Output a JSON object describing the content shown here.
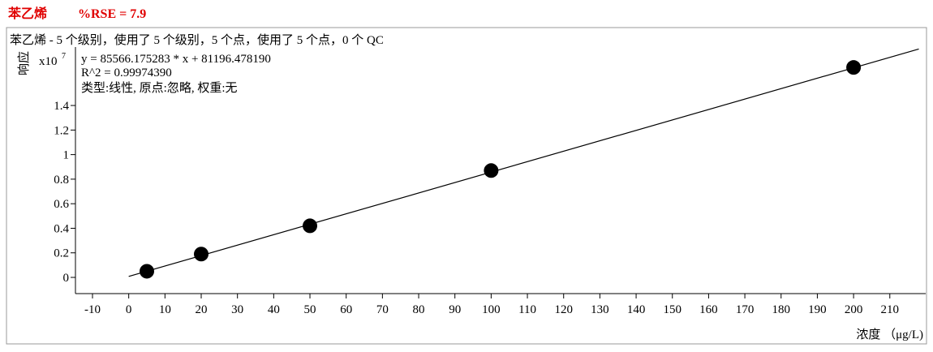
{
  "chart_data": {
    "type": "scatter",
    "title": "苯乙烯",
    "title_note": "%RSE = 7.9",
    "subtitle": "苯乙烯 - 5 个级别，使用了 5 个级别，5 个点，使用了 5 个点，0 个 QC",
    "annotations": [
      "y = 85566.175283 * x   + 81196.478190",
      "R^2 = 0.99974390",
      "类型:线性, 原点:忽略, 权重:无"
    ],
    "y_label": "响应",
    "y_multiplier": {
      "base": "x10",
      "exponent": "7"
    },
    "x_label": "浓度 （μg/L)",
    "x": [
      5,
      20,
      50,
      100,
      200
    ],
    "values": [
      0.05,
      0.19,
      0.42,
      0.87,
      1.71
    ],
    "color": "#000000",
    "fit_line": {
      "x": [
        0,
        218
      ],
      "values": [
        0.008,
        1.86
      ],
      "color": "#000000"
    },
    "xlim": [
      -14.7,
      219.9
    ],
    "xticks": [
      -10,
      0,
      10,
      20,
      30,
      40,
      50,
      60,
      70,
      80,
      90,
      100,
      110,
      120,
      130,
      140,
      150,
      160,
      170,
      180,
      190,
      200,
      210
    ],
    "ylim": [
      -0.132,
      1.876
    ],
    "yticks": [
      0,
      0.2,
      0.4,
      0.6,
      0.8,
      1,
      1.2,
      1.4
    ]
  }
}
